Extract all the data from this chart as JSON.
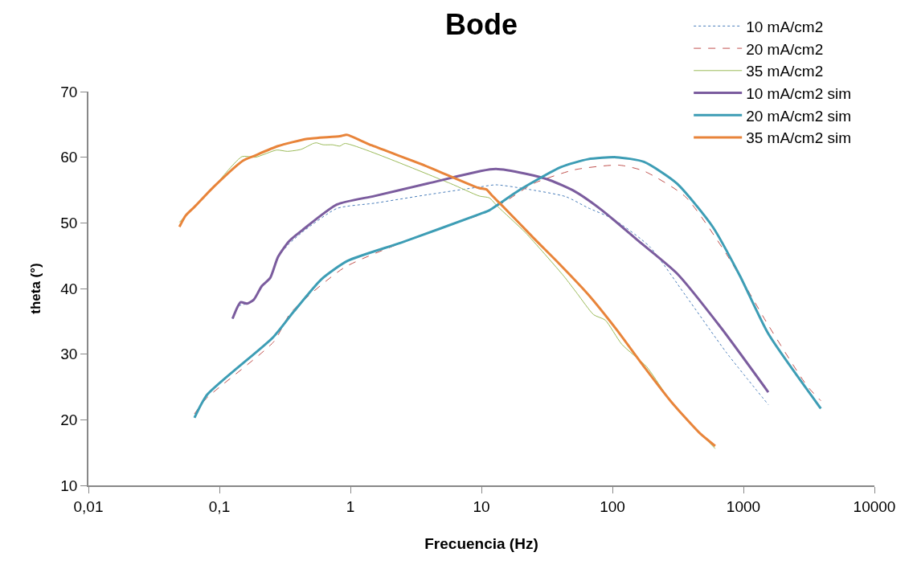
{
  "chart_data": {
    "type": "line",
    "title": "Bode",
    "xlabel": "Frecuencia (Hz)",
    "ylabel": "theta (°)",
    "log": "x",
    "grid": false,
    "legend": "top right",
    "marker": "none",
    "xlim": [
      0.01,
      10000
    ],
    "xticks": [
      {
        "value": 0.01,
        "label": "0,01"
      },
      {
        "value": 0.1,
        "label": "0,1"
      },
      1,
      10,
      100,
      1000,
      10000
    ],
    "ylim": [
      10,
      70
    ],
    "yticks": [
      10,
      20,
      30,
      40,
      50,
      60,
      70
    ],
    "series": [
      {
        "name": "10 mA/cm2",
        "color": "#4a7ebb",
        "line_style": "dotted",
        "x": [
          0.126,
          0.139,
          0.163,
          0.183,
          0.211,
          0.244,
          0.28,
          0.34,
          0.43,
          0.79,
          1.53,
          3.9,
          9.9,
          12.9,
          21.5,
          44,
          65,
          101,
          192,
          360,
          744,
          1549
        ],
        "values": [
          35.4,
          37.3,
          37.7,
          38.3,
          40.4,
          41.6,
          44.8,
          46.8,
          48.6,
          52.2,
          53,
          54.3,
          55.5,
          55.8,
          55.2,
          54,
          52.3,
          50.6,
          46.4,
          39,
          30.2,
          22.3
        ]
      },
      {
        "name": "20 mA/cm2",
        "color": "#c0504d",
        "line_style": "dashed",
        "x": [
          0.0645,
          0.079,
          0.26,
          0.35,
          0.9,
          4.7,
          9.9,
          15.3,
          25,
          51.6,
          112,
          174,
          360,
          744,
          1549,
          3050,
          3900
        ],
        "values": [
          20.9,
          23.2,
          31.9,
          36.3,
          43.2,
          49.1,
          51.3,
          53.3,
          56,
          58.1,
          58.8,
          57.9,
          54,
          45.2,
          34.4,
          25.2,
          22.9
        ]
      },
      {
        "name": "35 mA/cm2",
        "color": "#9bbb59",
        "line_style": "solid",
        "x": [
          0.0495,
          0.0906,
          0.149,
          0.188,
          0.274,
          0.33,
          0.42,
          0.52,
          0.55,
          0.62,
          0.73,
          0.83,
          0.91,
          5.8,
          9.6,
          11.5,
          13.3,
          21.7,
          42.5,
          54,
          72,
          88,
          118,
          182,
          282,
          609
        ],
        "values": [
          50.1,
          55.5,
          60.1,
          60,
          61.1,
          60.9,
          61.2,
          62.1,
          62.2,
          61.9,
          61.9,
          61.7,
          62.1,
          56,
          54.1,
          53.8,
          52.5,
          48.5,
          41.9,
          39.2,
          36,
          35.2,
          31.5,
          28.1,
          22.7,
          15.6
        ]
      },
      {
        "name": "10 mA/cm2 sim",
        "color": "#7b5c9e",
        "line_style": "solid",
        "x": [
          0.126,
          0.145,
          0.163,
          0.183,
          0.211,
          0.244,
          0.28,
          0.34,
          0.43,
          0.79,
          1.53,
          3.9,
          9.9,
          12.9,
          21.5,
          33.3,
          51.6,
          83.6,
          157,
          311,
          676,
          1549
        ],
        "values": [
          35.4,
          37.9,
          37.7,
          38.3,
          40.4,
          41.6,
          44.8,
          47.2,
          48.9,
          52.8,
          54.1,
          56,
          57.9,
          58.2,
          57.5,
          56.5,
          54.8,
          51.9,
          47.3,
          42.3,
          34,
          24.2
        ]
      },
      {
        "name": "20 mA/cm2 sim",
        "color": "#3d9db5",
        "line_style": "solid",
        "x": [
          0.0645,
          0.0805,
          0.255,
          0.37,
          0.6,
          0.95,
          2.45,
          9.9,
          11.45,
          19.5,
          40.5,
          65,
          107,
          174,
          311,
          583,
          942,
          1549,
          3900
        ],
        "values": [
          20.3,
          23.8,
          32.5,
          36.5,
          41.4,
          44.2,
          47,
          51.4,
          51.9,
          55,
          58.5,
          59.7,
          60,
          59.3,
          56,
          49.4,
          41.9,
          33.1,
          21.7
        ]
      },
      {
        "name": "35 mA/cm2 sim",
        "color": "#e8843a",
        "line_style": "solid",
        "x": [
          0.0495,
          0.0552,
          0.065,
          0.0906,
          0.152,
          0.184,
          0.28,
          0.47,
          0.83,
          0.91,
          0.95,
          1.46,
          3.74,
          9.6,
          10.9,
          12,
          15.3,
          25,
          40.5,
          66,
          107,
          174,
          282,
          457,
          609
        ],
        "values": [
          49.4,
          51.1,
          52.5,
          55.5,
          59.5,
          60.2,
          61.7,
          62.8,
          63.2,
          63.4,
          63.4,
          61.8,
          58.7,
          55.3,
          55.1,
          54.2,
          52.1,
          47.7,
          43.5,
          39,
          33.8,
          28.1,
          22.7,
          18.1,
          16
        ]
      }
    ]
  }
}
